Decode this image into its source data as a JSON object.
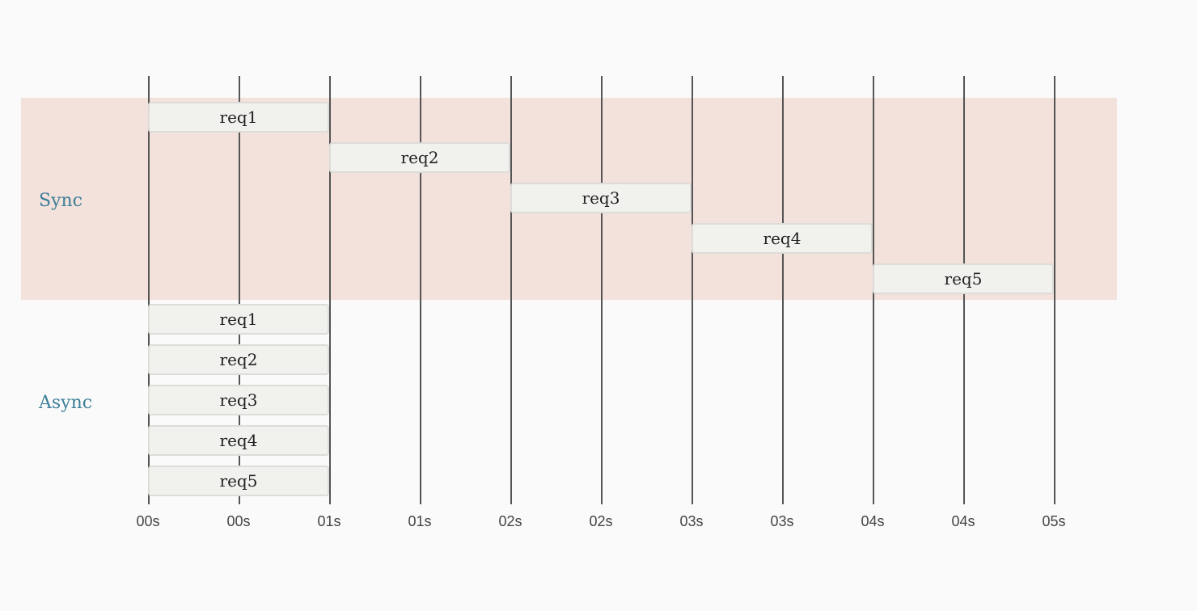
{
  "lanes": [
    {
      "label": "Sync"
    },
    {
      "label": "Async"
    }
  ],
  "axis": {
    "ticks": [
      "00s",
      "00s",
      "01s",
      "01s",
      "02s",
      "02s",
      "03s",
      "03s",
      "04s",
      "04s",
      "05s"
    ]
  },
  "colors": {
    "sync_band": "#f3e1dc",
    "lane_label": "#3d7f98",
    "bar_fill": "#f1f1ee",
    "bar_border": "#dcdcd8",
    "gridline": "#555555"
  },
  "sync_requests": [
    {
      "label": "req1",
      "start": 0,
      "end": 1
    },
    {
      "label": "req2",
      "start": 1,
      "end": 2
    },
    {
      "label": "req3",
      "start": 2,
      "end": 3
    },
    {
      "label": "req4",
      "start": 3,
      "end": 4
    },
    {
      "label": "req5",
      "start": 4,
      "end": 5
    }
  ],
  "async_requests": [
    {
      "label": "req1",
      "start": 0,
      "end": 1
    },
    {
      "label": "req2",
      "start": 0,
      "end": 1
    },
    {
      "label": "req3",
      "start": 0,
      "end": 1
    },
    {
      "label": "req4",
      "start": 0,
      "end": 1
    },
    {
      "label": "req5",
      "start": 0,
      "end": 1
    }
  ]
}
